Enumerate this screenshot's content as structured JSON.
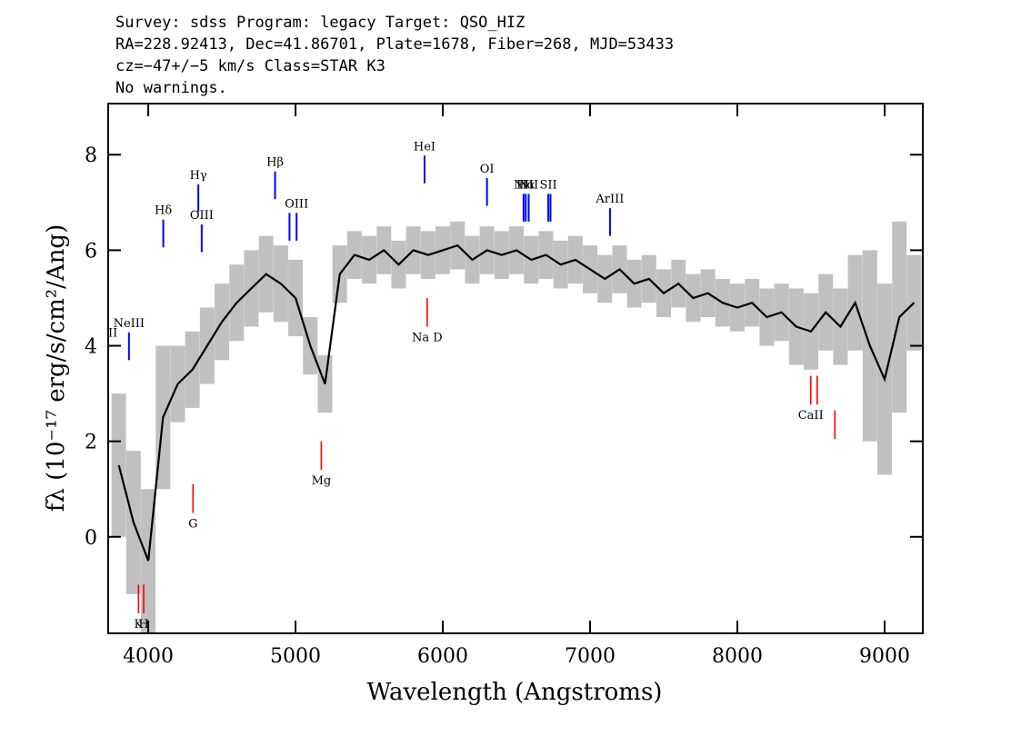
{
  "chart_data": {
    "type": "line",
    "title_lines": [
      "Survey: sdss Program: legacy Target: QSO_HIZ",
      "RA=228.92413, Dec=41.86701, Plate=1678, Fiber=268, MJD=53433",
      "cz=−47+/−5 km/s Class=STAR K3",
      "No warnings."
    ],
    "x_label": "Wavelength (Angstroms)",
    "y_label": "fλ (10⁻¹⁷ erg/s/cm²/Ang)",
    "xlim": [
      3728,
      9259
    ],
    "ylim": [
      -2.02,
      9.07
    ],
    "xticks": [
      4000,
      5000,
      6000,
      7000,
      8000,
      9000
    ],
    "yticks": [
      0,
      2,
      4,
      6,
      8
    ],
    "x": [
      3800,
      3900,
      4000,
      4100,
      4200,
      4300,
      4400,
      4500,
      4600,
      4700,
      4800,
      4900,
      5000,
      5100,
      5200,
      5300,
      5400,
      5500,
      5600,
      5700,
      5800,
      5900,
      6000,
      6100,
      6200,
      6300,
      6400,
      6500,
      6600,
      6700,
      6800,
      6900,
      7000,
      7100,
      7200,
      7300,
      7400,
      7500,
      7600,
      7700,
      7800,
      7900,
      8000,
      8100,
      8200,
      8300,
      8400,
      8500,
      8600,
      8700,
      8800,
      8900,
      9000,
      9100,
      9200
    ],
    "series": [
      {
        "name": "flux",
        "color": "#000000",
        "values": [
          1.5,
          0.3,
          -0.5,
          2.5,
          3.2,
          3.5,
          4.0,
          4.5,
          4.9,
          5.2,
          5.5,
          5.3,
          5.0,
          4.0,
          3.2,
          5.5,
          5.9,
          5.8,
          6.0,
          5.7,
          6.0,
          5.9,
          6.0,
          6.1,
          5.8,
          6.0,
          5.9,
          6.0,
          5.8,
          5.9,
          5.7,
          5.8,
          5.6,
          5.4,
          5.6,
          5.3,
          5.4,
          5.1,
          5.3,
          5.0,
          5.1,
          4.9,
          4.8,
          4.9,
          4.6,
          4.7,
          4.4,
          4.3,
          4.7,
          4.4,
          4.9,
          4.0,
          3.3,
          4.6,
          4.9
        ],
        "errors": [
          1.5,
          1.5,
          1.5,
          1.5,
          0.8,
          0.8,
          0.8,
          0.8,
          0.8,
          0.8,
          0.8,
          0.8,
          0.8,
          0.6,
          0.6,
          0.6,
          0.5,
          0.5,
          0.5,
          0.5,
          0.5,
          0.5,
          0.5,
          0.5,
          0.5,
          0.5,
          0.5,
          0.5,
          0.5,
          0.5,
          0.5,
          0.5,
          0.5,
          0.5,
          0.5,
          0.5,
          0.5,
          0.5,
          0.5,
          0.5,
          0.5,
          0.5,
          0.5,
          0.5,
          0.6,
          0.6,
          0.8,
          0.8,
          0.8,
          0.8,
          1.0,
          2.0,
          2.0,
          2.0,
          1.0
        ],
        "error_color": "#c0c0c0"
      }
    ],
    "emission_color": "#0000ff",
    "absorption_color": "#ff0000",
    "emission_lines": [
      {
        "label": "OII",
        "x": 3727,
        "y": 3.5
      },
      {
        "label": "NeIII",
        "x": 3869,
        "y": 3.7
      },
      {
        "label": "Hδ",
        "x": 4102,
        "y": 6.06
      },
      {
        "label": "Hγ",
        "x": 4340,
        "y": 6.8
      },
      {
        "label": "OIII",
        "x": 4363,
        "y": 5.96
      },
      {
        "label": "Hβ",
        "x": 4861,
        "y": 7.07
      },
      {
        "label": null,
        "x": 4959,
        "y": 6.2
      },
      {
        "label": "OIII",
        "x": 5007,
        "y": 6.2
      },
      {
        "label": "HeI",
        "x": 5876,
        "y": 7.4
      },
      {
        "label": "OI",
        "x": 6300,
        "y": 6.93
      },
      {
        "label": "NII",
        "x": 6548,
        "y": 6.6
      },
      {
        "label": "Hα",
        "x": 6563,
        "y": 6.6
      },
      {
        "label": "NII",
        "x": 6583,
        "y": 6.6
      },
      {
        "label": "SII",
        "x": 6716,
        "y": 6.6
      },
      {
        "label": null,
        "x": 6731,
        "y": 6.6
      },
      {
        "label": "ArIII",
        "x": 7135,
        "y": 6.3
      }
    ],
    "absorption_lines": [
      {
        "label": "K",
        "x": 3934,
        "y": -1.0
      },
      {
        "label": "H",
        "x": 3969,
        "y": -1.0
      },
      {
        "label": "G",
        "x": 4304,
        "y": 1.1
      },
      {
        "label": "Mg",
        "x": 5175,
        "y": 2.0
      },
      {
        "label": "Na D",
        "x": 5894,
        "y": 5.0
      },
      {
        "label": "CaII",
        "x": 8498,
        "y": 3.37
      },
      {
        "label": null,
        "x": 8542,
        "y": 3.37
      },
      {
        "label": null,
        "x": 8662,
        "y": 2.65
      }
    ]
  }
}
